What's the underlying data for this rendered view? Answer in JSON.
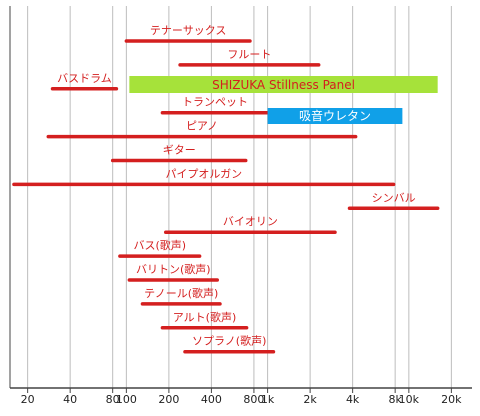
{
  "chart_data": {
    "type": "range-bar",
    "x_scale": "log2",
    "x_range": [
      15,
      28000
    ],
    "x_ticks": [
      "20",
      "40",
      "80",
      "100",
      "200",
      "400",
      "800",
      "1k",
      "2k",
      "4k",
      "8k",
      "10k",
      "20k"
    ],
    "x_tick_values": [
      20,
      40,
      80,
      100,
      200,
      400,
      800,
      1000,
      2000,
      4000,
      8000,
      10000,
      20000
    ],
    "grid": "vertical",
    "colors": {
      "bar": "#d41f1f",
      "grid": "#bdbdbd",
      "axis": "#444444"
    },
    "instruments": [
      {
        "label": "テナーサックス",
        "min": 100,
        "max": 750
      },
      {
        "label": "フルート",
        "min": 240,
        "max": 2300
      },
      {
        "label": "バスドラム",
        "min": 30,
        "max": 85
      },
      {
        "label": "トランペット",
        "min": 180,
        "max": 1000
      },
      {
        "label": "ピアノ",
        "min": 28,
        "max": 4200
      },
      {
        "label": "ギター",
        "min": 80,
        "max": 700
      },
      {
        "label": "パイプオルガン",
        "min": 16,
        "max": 7800
      },
      {
        "label": "シンバル",
        "min": 3800,
        "max": 16000
      },
      {
        "label": "バイオリン",
        "min": 190,
        "max": 3000
      },
      {
        "label": "バス(歌声)",
        "min": 90,
        "max": 330
      },
      {
        "label": "バリトン(歌声)",
        "min": 105,
        "max": 440
      },
      {
        "label": "テノール(歌声)",
        "min": 130,
        "max": 460
      },
      {
        "label": "アルト(歌声)",
        "min": 180,
        "max": 710
      },
      {
        "label": "ソプラノ(歌声)",
        "min": 260,
        "max": 1100
      }
    ],
    "bands": [
      {
        "label": "SHIZUKA Stillness Panel",
        "min": 105,
        "max": 16000,
        "fill": "#a6e23a",
        "text_color": "#d41f1f"
      },
      {
        "label": "吸音ウレタン",
        "min": 1000,
        "max": 9000,
        "fill": "#10a0e8",
        "text_color": "#ffffff"
      }
    ]
  }
}
